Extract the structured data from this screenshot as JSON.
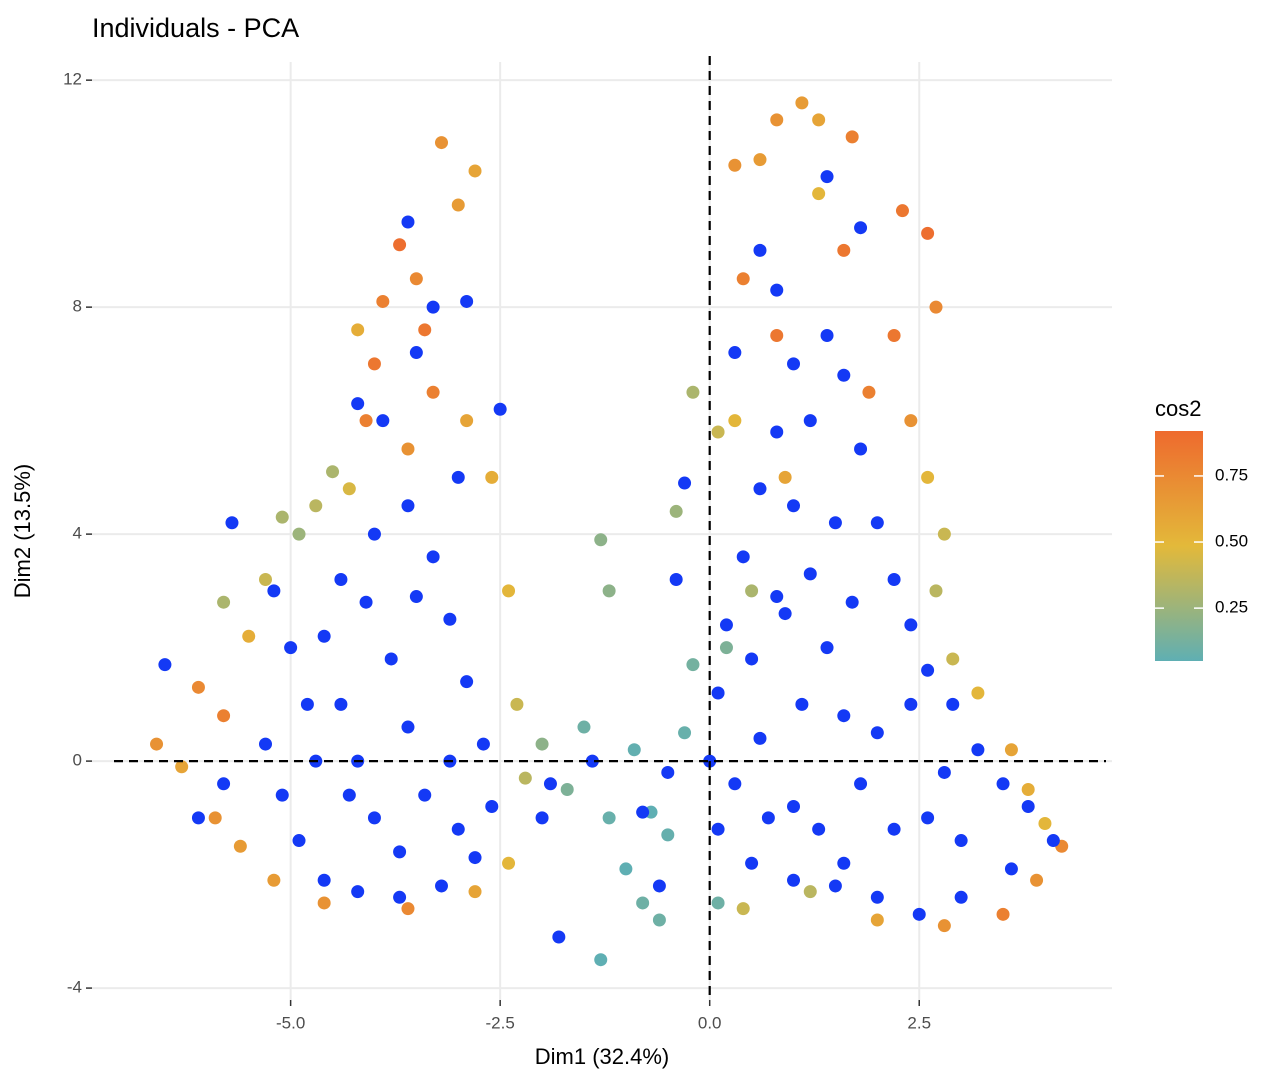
{
  "chart_data": {
    "type": "scatter",
    "title": "Individuals - PCA",
    "x_label": "Dim1 (32.4%)",
    "y_label": "Dim2 (13.5%)",
    "xlim": [
      -7.37,
      4.8
    ],
    "ylim": [
      -4.21,
      12.32
    ],
    "xticks": [
      {
        "value": -5,
        "label": "-5.0"
      },
      {
        "value": -2.5,
        "label": "-2.5"
      },
      {
        "value": 0,
        "label": "0.0"
      },
      {
        "value": 2.5,
        "label": "2.5"
      }
    ],
    "yticks": [
      -4,
      0,
      4,
      8,
      12
    ],
    "grid": true,
    "ref_lines": {
      "x": 0,
      "y": 0
    },
    "colorbar": {
      "title": "cos2",
      "lim": [
        0.05,
        0.92
      ],
      "ticks": [
        0.25,
        {
          "value": 0.5,
          "label": "0.50"
        },
        0.75
      ],
      "colors": [
        "#5FAFB3",
        "#E3B93A",
        "#EE6A2E"
      ],
      "position": "right"
    },
    "series": [
      {
        "x": [
          -6.6,
          -6.3,
          -6.1,
          -5.9,
          -5.8,
          -5.6,
          -5.5,
          -5.3,
          -5.1,
          -4.9,
          -4.7,
          -4.5,
          -4.3,
          -4.1,
          -4.0,
          -3.9,
          -3.7,
          -3.5,
          -3.4,
          -3.2,
          -3.0,
          -2.8,
          -3.3,
          -3.6,
          -2.9,
          -2.6,
          -2.4,
          -2.3,
          -2.2,
          -2.4,
          -2.8,
          -3.6,
          -4.6,
          -5.2,
          -5.8,
          -4.2,
          -2.0,
          -1.7,
          -1.5,
          -1.2,
          -1.3,
          -1.2,
          -1.0,
          -0.9,
          -0.7,
          -0.6,
          -0.5,
          -0.3,
          -0.2,
          -0.4,
          -0.2,
          0.1,
          0.2,
          0.1,
          -1.3,
          -0.8,
          0.3,
          0.6,
          0.8,
          1.1,
          1.3,
          1.7,
          1.3,
          0.4,
          2.6,
          2.3,
          2.7,
          2.2,
          2.4,
          2.6,
          2.8,
          2.7,
          2.9,
          3.2,
          3.6,
          3.8,
          4.0,
          4.2,
          3.9,
          3.5,
          2.8,
          2.0,
          1.2,
          0.4,
          0.8,
          1.6,
          0.9,
          0.3,
          1.9,
          0.5
        ],
        "y": [
          0.3,
          -0.1,
          1.3,
          -1.0,
          0.8,
          -1.5,
          2.2,
          3.2,
          4.3,
          4.0,
          4.5,
          5.1,
          4.8,
          6.0,
          7.0,
          8.1,
          9.1,
          8.5,
          7.6,
          10.9,
          9.8,
          10.4,
          6.5,
          5.5,
          6.0,
          5.0,
          3.0,
          1.0,
          -0.3,
          -1.8,
          -2.3,
          -2.6,
          -2.5,
          -2.1,
          2.8,
          7.6,
          0.3,
          -0.5,
          0.6,
          -1.0,
          3.9,
          3.0,
          -1.9,
          0.2,
          -0.9,
          -2.8,
          -1.3,
          0.5,
          1.7,
          4.4,
          6.5,
          5.8,
          2.0,
          -2.5,
          -3.5,
          -2.5,
          10.5,
          10.6,
          11.3,
          11.6,
          11.3,
          11.0,
          10.0,
          8.5,
          9.3,
          9.7,
          8.0,
          7.5,
          6.0,
          5.0,
          4.0,
          3.0,
          1.8,
          1.2,
          0.2,
          -0.5,
          -1.1,
          -1.5,
          -2.1,
          -2.7,
          -2.9,
          -2.8,
          -2.3,
          -2.6,
          7.5,
          9.0,
          5.0,
          6.0,
          6.5,
          3.0
        ],
        "cos2": [
          0.7,
          0.6,
          0.75,
          0.7,
          0.8,
          0.65,
          0.55,
          0.4,
          0.3,
          0.25,
          0.35,
          0.3,
          0.45,
          0.8,
          0.85,
          0.8,
          0.9,
          0.75,
          0.85,
          0.7,
          0.65,
          0.6,
          0.8,
          0.7,
          0.6,
          0.55,
          0.5,
          0.4,
          0.35,
          0.5,
          0.6,
          0.75,
          0.7,
          0.65,
          0.3,
          0.55,
          0.2,
          0.15,
          0.1,
          0.08,
          0.2,
          0.2,
          0.05,
          0.06,
          0.05,
          0.1,
          0.07,
          0.08,
          0.12,
          0.25,
          0.3,
          0.4,
          0.15,
          0.1,
          0.05,
          0.1,
          0.7,
          0.65,
          0.7,
          0.65,
          0.6,
          0.8,
          0.5,
          0.8,
          0.9,
          0.85,
          0.75,
          0.85,
          0.7,
          0.5,
          0.4,
          0.35,
          0.4,
          0.5,
          0.6,
          0.55,
          0.5,
          0.75,
          0.7,
          0.8,
          0.7,
          0.6,
          0.35,
          0.4,
          0.85,
          0.85,
          0.6,
          0.5,
          0.8,
          0.3
        ]
      },
      {
        "color": "#1439F5",
        "x": [
          -6.5,
          -5.7,
          -5.2,
          -5.0,
          -4.8,
          -5.3,
          -5.1,
          -4.9,
          -4.6,
          -4.2,
          -3.7,
          -3.2,
          -2.8,
          -2.6,
          -2.7,
          -2.9,
          -3.1,
          -3.3,
          -3.6,
          -4.0,
          -4.4,
          -4.6,
          -4.4,
          -4.2,
          -4.0,
          -3.7,
          -3.4,
          -3.6,
          -3.8,
          -3.5,
          -4.3,
          -4.7,
          -3.1,
          -3.0,
          -4.1,
          -3.9,
          -3.5,
          -3.3,
          -2.9,
          -3.6,
          -4.2,
          -3.0,
          -2.5,
          -5.8,
          -6.1,
          -1.8,
          -1.4,
          -2.0,
          0.3,
          0.6,
          0.8,
          1.0,
          1.2,
          1.4,
          1.4,
          1.6,
          1.8,
          2.0,
          2.2,
          2.4,
          2.6,
          2.9,
          3.2,
          3.5,
          3.8,
          4.1,
          3.6,
          3.0,
          2.5,
          2.0,
          1.5,
          1.0,
          0.5,
          0.1,
          0.0,
          0.1,
          0.2,
          0.4,
          0.6,
          0.8,
          1.0,
          1.2,
          1.4,
          1.6,
          1.8,
          2.2,
          2.6,
          3.0,
          1.0,
          0.6,
          0.5,
          0.9,
          1.5,
          1.3,
          2.0,
          2.4,
          1.7,
          0.3,
          -0.5,
          -0.8,
          -0.6,
          -1.9,
          -0.3,
          -0.4,
          1.1,
          1.8,
          0.8,
          1.6,
          2.8,
          0.7
        ],
        "y": [
          1.7,
          4.2,
          3.0,
          2.0,
          1.0,
          0.3,
          -0.6,
          -1.4,
          -2.1,
          -2.3,
          -2.4,
          -2.2,
          -1.7,
          -0.8,
          0.3,
          1.4,
          2.5,
          3.6,
          4.5,
          4.0,
          3.2,
          2.2,
          1.0,
          0.0,
          -1.0,
          -1.6,
          -0.6,
          0.6,
          1.8,
          2.9,
          -0.6,
          0.0,
          0.0,
          -1.2,
          2.8,
          6.0,
          7.2,
          8.0,
          8.1,
          9.5,
          6.3,
          5.0,
          6.2,
          -0.4,
          -1.0,
          -3.1,
          0.0,
          -1.0,
          7.2,
          9.0,
          8.3,
          7.0,
          6.0,
          10.3,
          7.5,
          6.8,
          5.5,
          4.2,
          3.2,
          2.4,
          1.6,
          1.0,
          0.2,
          -0.4,
          -0.8,
          -1.4,
          -1.9,
          -2.4,
          -2.7,
          -2.4,
          -2.2,
          -2.1,
          -1.8,
          -1.2,
          0.0,
          1.2,
          2.4,
          3.6,
          4.8,
          5.8,
          4.5,
          3.3,
          2.0,
          0.8,
          -0.4,
          -1.2,
          -1.0,
          -1.4,
          -0.8,
          0.4,
          1.8,
          2.6,
          4.2,
          -1.2,
          0.5,
          1.0,
          2.8,
          -0.4,
          -0.2,
          -0.9,
          -2.2,
          -0.4,
          4.9,
          3.2,
          1.0,
          9.4,
          2.9,
          -1.8,
          -0.2,
          -1.0
        ]
      }
    ]
  }
}
